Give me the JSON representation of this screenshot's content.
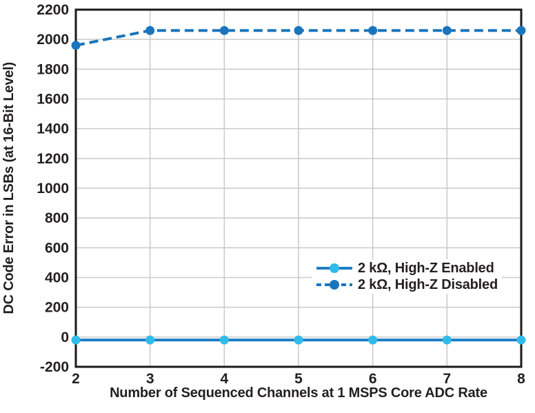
{
  "chart_data": {
    "type": "line",
    "xlabel": "Number of Sequenced Channels at 1 MSPS Core ADC Rate",
    "ylabel": "DC Code Error in LSBs (at 16-Bit Level)",
    "x": [
      2,
      3,
      4,
      5,
      6,
      7,
      8
    ],
    "xlim": [
      2,
      8
    ],
    "ylim": [
      -200,
      2200
    ],
    "xticks": [
      2,
      3,
      4,
      5,
      6,
      7,
      8
    ],
    "yticks": [
      2200,
      2000,
      1800,
      1600,
      1400,
      1200,
      1000,
      800,
      600,
      400,
      200,
      0,
      -200
    ],
    "grid": true,
    "legend_position": "inside-right-lower",
    "series": [
      {
        "name": "2 kΩ, High-Z Enabled",
        "values": [
          -20,
          -20,
          -20,
          -20,
          -20,
          -20,
          -20
        ],
        "line_style": "solid",
        "line_color": "#1e7ec4",
        "marker": "circle",
        "marker_color": "#2fbcea"
      },
      {
        "name": "2 kΩ, High-Z Disabled",
        "values": [
          1960,
          2060,
          2060,
          2060,
          2060,
          2060,
          2060
        ],
        "line_style": "dashed",
        "line_color": "#1b75bc",
        "marker": "circle",
        "marker_color": "#1b75bc"
      }
    ],
    "colors": {
      "grid": "#c9c9c9",
      "axis_frame": "#1a1a1a",
      "text": "#231f20",
      "background": "#ffffff"
    }
  }
}
